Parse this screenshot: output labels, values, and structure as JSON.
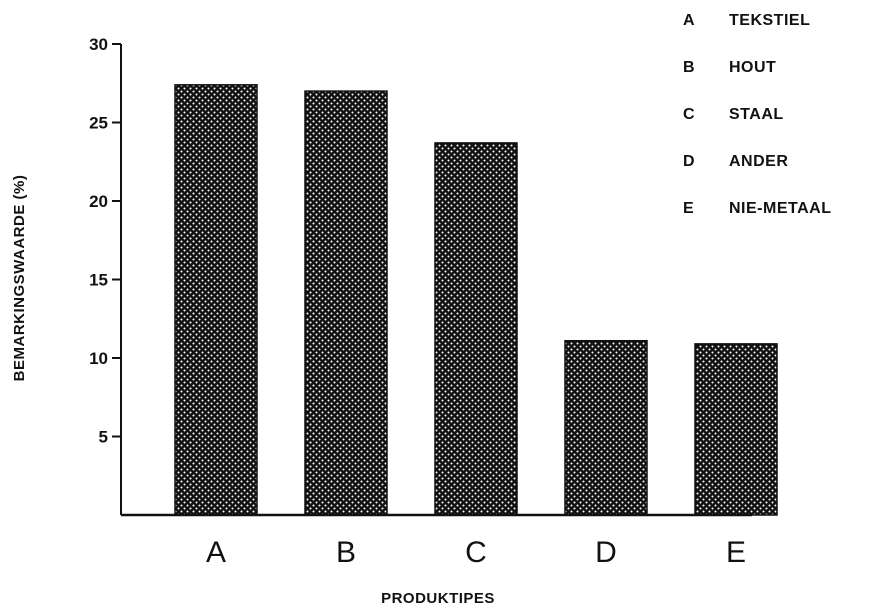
{
  "chart_data": {
    "type": "bar",
    "categories": [
      "A",
      "B",
      "C",
      "D",
      "E"
    ],
    "values": [
      27.4,
      27.0,
      23.7,
      11.1,
      10.9
    ],
    "ylabel": "BEMARKINGSWAARDE (%)",
    "xlabel": "PRODUKTIPES",
    "ylim": [
      0,
      30
    ],
    "yticks": [
      "5",
      "10",
      "15",
      "20",
      "25",
      "30"
    ],
    "grid": false,
    "legend_position": "top-right",
    "bar_fill": "dotted dark halftone",
    "legend": [
      {
        "key": "A",
        "label": "TEKSTIEL"
      },
      {
        "key": "B",
        "label": "HOUT"
      },
      {
        "key": "C",
        "label": "STAAL"
      },
      {
        "key": "D",
        "label": "ANDER"
      },
      {
        "key": "E",
        "label": "NIE-METAAL"
      }
    ]
  },
  "colors": {
    "ink": "#111111",
    "background": "#ffffff"
  }
}
